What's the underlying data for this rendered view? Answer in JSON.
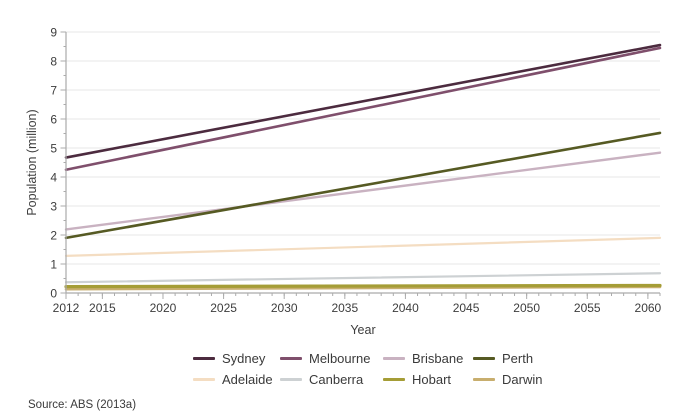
{
  "source_note": "Source: ABS (2013a)",
  "chart_data": {
    "type": "line",
    "title": "",
    "xlabel": "Year",
    "ylabel": "Population (million)",
    "xlim": [
      2012,
      2061
    ],
    "ylim": [
      0,
      9
    ],
    "x_major_ticks": [
      2012,
      2015,
      2020,
      2025,
      2030,
      2035,
      2040,
      2045,
      2050,
      2055,
      2060
    ],
    "x_minor_tick_step": 1,
    "y_ticks": [
      0,
      1,
      2,
      3,
      4,
      5,
      6,
      7,
      8,
      9
    ],
    "grid": "horizontal",
    "legend_position": "bottom",
    "series": [
      {
        "name": "Sydney",
        "color": "#4c2b3f",
        "width": 2.6,
        "x": [
          2012,
          2061
        ],
        "values": [
          4.67,
          8.55
        ]
      },
      {
        "name": "Melbourne",
        "color": "#7f4f6c",
        "width": 2.6,
        "x": [
          2012,
          2061
        ],
        "values": [
          4.25,
          8.45
        ]
      },
      {
        "name": "Brisbane",
        "color": "#c9b2c1",
        "width": 2.4,
        "x": [
          2012,
          2061
        ],
        "values": [
          2.19,
          4.84
        ]
      },
      {
        "name": "Perth",
        "color": "#565a23",
        "width": 2.6,
        "x": [
          2012,
          2061
        ],
        "values": [
          1.9,
          5.52
        ]
      },
      {
        "name": "Adelaide",
        "color": "#f4ddc2",
        "width": 2.2,
        "x": [
          2012,
          2061
        ],
        "values": [
          1.28,
          1.9
        ]
      },
      {
        "name": "Canberra",
        "color": "#cdd1d3",
        "width": 2.2,
        "x": [
          2012,
          2061
        ],
        "values": [
          0.37,
          0.68
        ]
      },
      {
        "name": "Hobart",
        "color": "#a59d36",
        "width": 3.2,
        "x": [
          2012,
          2061
        ],
        "values": [
          0.22,
          0.26
        ]
      },
      {
        "name": "Darwin",
        "color": "#c8ae6e",
        "width": 2.6,
        "x": [
          2012,
          2061
        ],
        "values": [
          0.13,
          0.21
        ]
      }
    ],
    "draw_order": [
      4,
      5,
      7,
      6,
      2,
      3,
      1,
      0
    ],
    "axis_color": "#ababab",
    "gridline_color": "#e7e7e7"
  }
}
